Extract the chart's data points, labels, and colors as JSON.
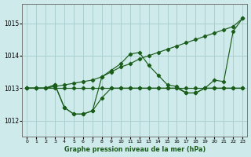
{
  "title": "Graphe pression niveau de la mer (hPa)",
  "background_color": "#ceeaea",
  "grid_color": "#aacfcf",
  "line_color": "#1a5c1a",
  "xlim": [
    -0.5,
    23.5
  ],
  "ylim": [
    1011.5,
    1015.6
  ],
  "yticks": [
    1012,
    1013,
    1014,
    1015
  ],
  "xticks": [
    0,
    1,
    2,
    3,
    4,
    5,
    6,
    7,
    8,
    9,
    10,
    11,
    12,
    13,
    14,
    15,
    16,
    17,
    18,
    19,
    20,
    21,
    22,
    23
  ],
  "hours": [
    0,
    1,
    2,
    3,
    4,
    5,
    6,
    7,
    8,
    9,
    10,
    11,
    12,
    13,
    14,
    15,
    16,
    17,
    18,
    19,
    20,
    21,
    22,
    23
  ],
  "line_flat": [
    1013.0,
    1013.0,
    1013.0,
    1013.0,
    1013.0,
    1013.0,
    1013.0,
    1013.0,
    1013.0,
    1013.0,
    1013.0,
    1013.0,
    1013.0,
    1013.0,
    1013.0,
    1013.0,
    1013.0,
    1013.0,
    1013.0,
    1013.0,
    1013.0,
    1013.0,
    1013.0,
    1013.0
  ],
  "line_dip": [
    1013.0,
    1013.0,
    1013.0,
    1013.1,
    1012.4,
    1012.2,
    1012.2,
    1012.3,
    1012.7,
    1013.0,
    1013.0,
    1013.0,
    1013.0,
    1013.0,
    1013.0,
    1013.0,
    1013.0,
    1012.85,
    1012.85,
    1013.0,
    1013.0,
    1013.0,
    1013.0,
    1013.0
  ],
  "line_peak": [
    1013.0,
    1013.0,
    1013.0,
    1013.1,
    1012.4,
    1012.2,
    1012.2,
    1012.3,
    1013.35,
    1013.55,
    1013.75,
    1014.05,
    1014.1,
    1013.7,
    1013.4,
    1013.1,
    1013.05,
    1012.85,
    1012.85,
    1013.0,
    1013.25,
    1013.2,
    1014.75,
    1015.15
  ],
  "line_diag": [
    1013.0,
    1013.0,
    1013.0,
    1013.05,
    1013.1,
    1013.15,
    1013.2,
    1013.25,
    1013.35,
    1013.5,
    1013.65,
    1013.75,
    1013.9,
    1014.0,
    1014.1,
    1014.2,
    1014.3,
    1014.4,
    1014.5,
    1014.6,
    1014.7,
    1014.8,
    1014.9,
    1015.15
  ]
}
